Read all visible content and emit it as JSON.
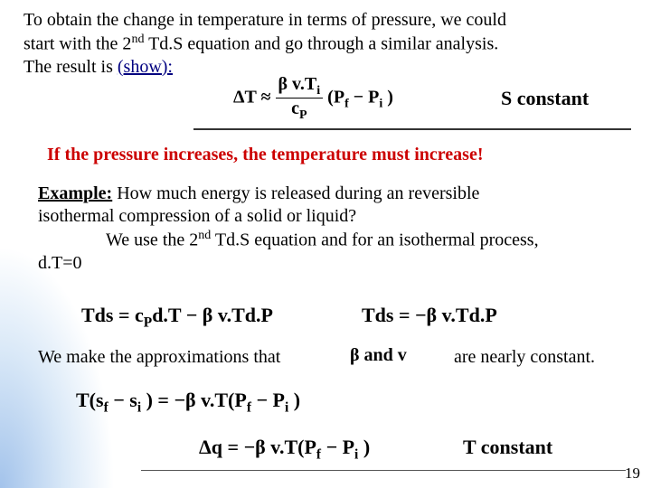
{
  "para1_l1": "To obtain the change in temperature in terms of pressure, we could",
  "para1_l2_a": " start with the 2",
  "para1_l2_sup": "nd",
  "para1_l2_b": " Td.S equation and go through a similar analysis.",
  "para1_l3": "The result is ",
  "show_link": "(show):",
  "eq1_lhs": "ΔT ≈ ",
  "eq1_num_a": "β v.T",
  "eq1_num_sub": "i",
  "eq1_den_a": "c",
  "eq1_den_sub": "P",
  "eq1_rhs_a": " (P",
  "eq1_rhs_sub1": "f",
  "eq1_rhs_b": " − P",
  "eq1_rhs_sub2": "i",
  "eq1_rhs_c": " )",
  "s_constant": "S constant",
  "red_text": "If the pressure increases, the temperature must increase!",
  "example_label": "Example:",
  "ex_l1": " How much energy is released during an reversible",
  "ex_l2": " isothermal compression of a solid or liquid?",
  "ex_l3a": "We use the 2",
  "ex_l3sup": "nd",
  "ex_l3b": " Td.S equation and for an isothermal process,",
  "ex_l4": "d.T=0",
  "eq2a_a": "Tds = c",
  "eq2a_sub": "P",
  "eq2a_b": "d.T − β v.Td.P",
  "eq2b": "Tds = −β v.Td.P",
  "approx1": "We make the approximations that",
  "beta_and_v": "β and v",
  "approx2": "are nearly constant.",
  "eq3_a": "T(s",
  "eq3_sub1": "f",
  "eq3_b": " − s",
  "eq3_sub2": "i",
  "eq3_c": " ) = −β v.T(P",
  "eq3_sub3": "f",
  "eq3_d": " − P",
  "eq3_sub4": "i",
  "eq3_e": " )",
  "eq4_a": "Δq = −β v.T(P",
  "eq4_sub1": "f",
  "eq4_b": " − P",
  "eq4_sub2": "i",
  "eq4_c": " )",
  "t_constant": "T constant",
  "page": "19"
}
